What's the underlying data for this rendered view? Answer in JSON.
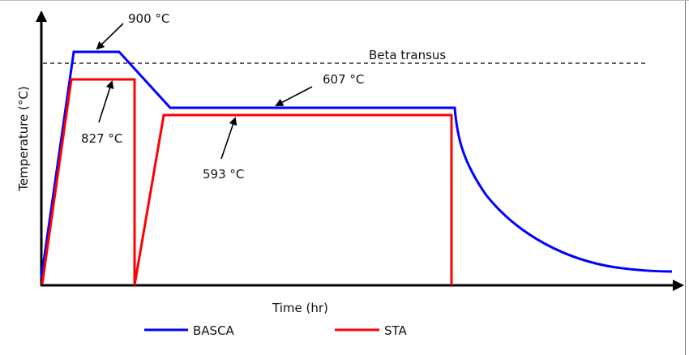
{
  "diagram": {
    "y_axis_label": "Temperature (°C)",
    "x_axis_label": "Time (hr)",
    "reference_line": "Beta transus",
    "annotations": {
      "basca_solution": "900 °C",
      "sta_solution": "827 °C",
      "basca_aging": "607 °C",
      "sta_aging": "593 °C"
    },
    "legend": [
      {
        "name": "BASCA",
        "color": "#0000ff"
      },
      {
        "name": "STA",
        "color": "#ff0000"
      }
    ]
  }
}
